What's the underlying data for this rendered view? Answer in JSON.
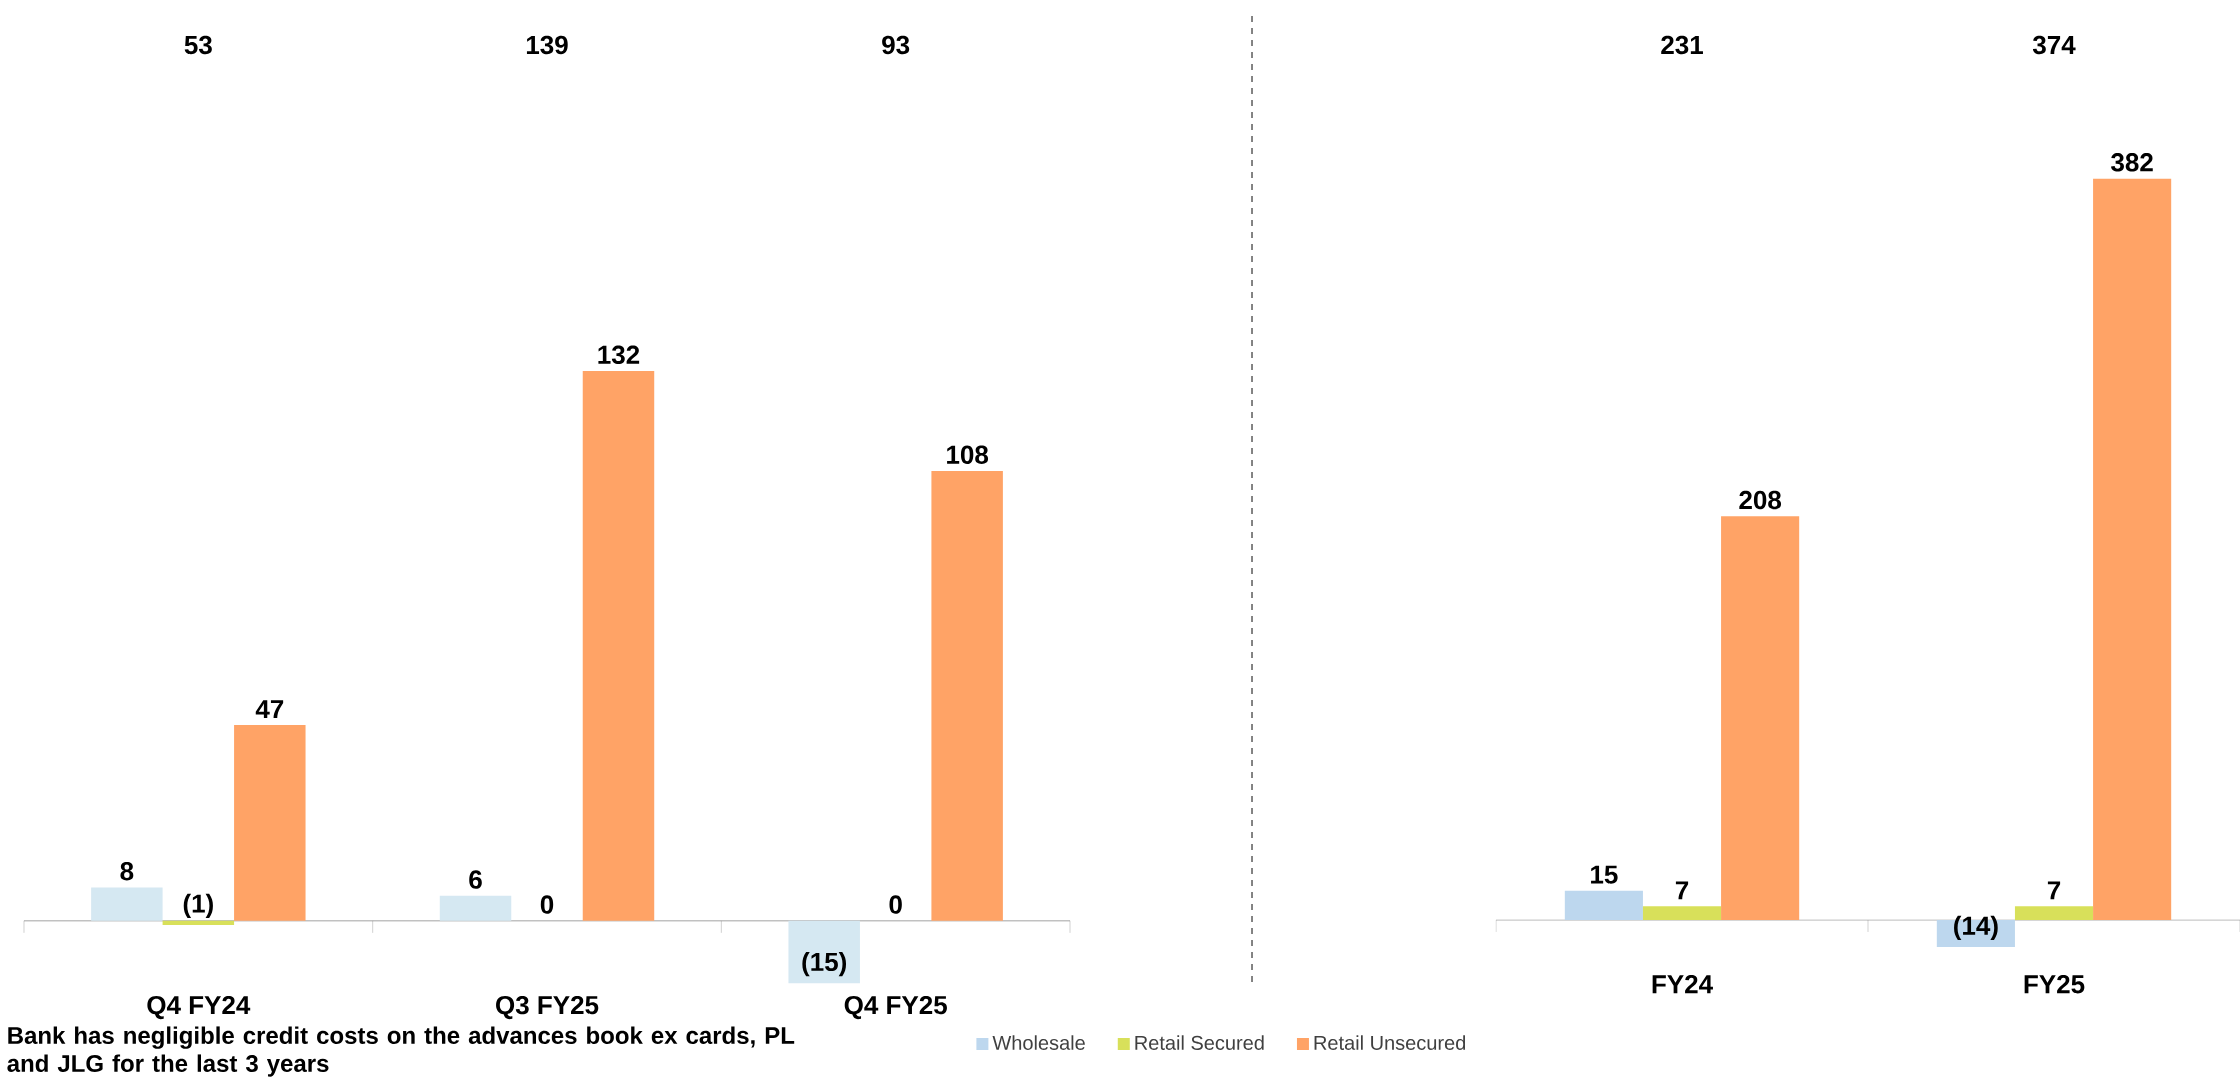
{
  "chart_data": [
    {
      "type": "bar",
      "categories": [
        "Q4 FY24",
        "Q3 FY25",
        "Q4 FY25"
      ],
      "series": [
        {
          "color": "#d5e8f2",
          "values": [
            8,
            6,
            -15
          ],
          "value_labels": [
            "8",
            "6",
            "(15)"
          ]
        },
        {
          "color": "#d8e05a",
          "values": [
            -1,
            0,
            0
          ],
          "value_labels": [
            "(1)",
            "0",
            "0"
          ]
        },
        {
          "color": "#ffa366",
          "values": [
            47,
            132,
            108
          ],
          "value_labels": [
            "47",
            "132",
            "108"
          ]
        }
      ],
      "annotations": [
        "53",
        "139",
        "93",
        "Bank has negligible credit costs on the advances book ex cards, PL and JLG for the last 3 years"
      ]
    },
    {
      "type": "bar",
      "categories": [
        "FY24",
        "FY25"
      ],
      "series": [
        {
          "name": "Wholesale",
          "color": "#bdd7ee",
          "values": [
            15,
            -14
          ],
          "value_labels": [
            "15",
            "(14)"
          ]
        },
        {
          "name": "Retail Secured",
          "color": "#d8e05a",
          "values": [
            7,
            7
          ],
          "value_labels": [
            "7",
            "7"
          ]
        },
        {
          "name": "Retail Unsecured",
          "color": "#ffa366",
          "values": [
            208,
            382
          ],
          "value_labels": [
            "208",
            "382"
          ]
        }
      ],
      "annotations": [
        "231",
        "374"
      ],
      "legend": "bottom"
    }
  ]
}
